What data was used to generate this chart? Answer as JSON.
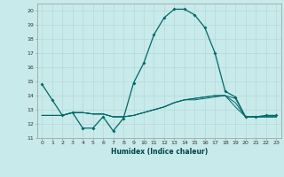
{
  "xlabel": "Humidex (Indice chaleur)",
  "ylabel": "",
  "background_color": "#c8eaea",
  "grid_color": "#b8d8d8",
  "line_color": "#006868",
  "xlim": [
    -0.5,
    23.5
  ],
  "ylim": [
    11,
    20.5
  ],
  "yticks": [
    11,
    12,
    13,
    14,
    15,
    16,
    17,
    18,
    19,
    20
  ],
  "xticks": [
    0,
    1,
    2,
    3,
    4,
    5,
    6,
    7,
    8,
    9,
    10,
    11,
    12,
    13,
    14,
    15,
    16,
    17,
    18,
    19,
    20,
    21,
    22,
    23
  ],
  "series": [
    [
      14.8,
      13.7,
      12.6,
      12.8,
      11.7,
      11.7,
      12.5,
      11.5,
      12.4,
      14.9,
      16.3,
      18.3,
      19.5,
      20.1,
      20.1,
      19.7,
      18.8,
      17.0,
      14.3,
      13.9,
      12.5,
      12.5,
      12.6,
      12.6
    ],
    [
      12.6,
      12.6,
      12.6,
      12.8,
      12.8,
      12.7,
      12.7,
      12.5,
      12.5,
      12.6,
      12.8,
      13.0,
      13.2,
      13.5,
      13.7,
      13.8,
      13.9,
      14.0,
      14.0,
      13.8,
      12.5,
      12.5,
      12.5,
      12.5
    ],
    [
      12.6,
      12.6,
      12.6,
      12.8,
      12.8,
      12.7,
      12.7,
      12.5,
      12.5,
      12.6,
      12.8,
      13.0,
      13.2,
      13.5,
      13.7,
      13.8,
      13.9,
      14.0,
      14.0,
      13.5,
      12.5,
      12.5,
      12.5,
      12.5
    ],
    [
      12.6,
      12.6,
      12.6,
      12.8,
      12.8,
      12.7,
      12.7,
      12.5,
      12.5,
      12.6,
      12.8,
      13.0,
      13.2,
      13.5,
      13.7,
      13.7,
      13.8,
      13.9,
      14.0,
      13.2,
      12.5,
      12.5,
      12.5,
      12.5
    ]
  ]
}
